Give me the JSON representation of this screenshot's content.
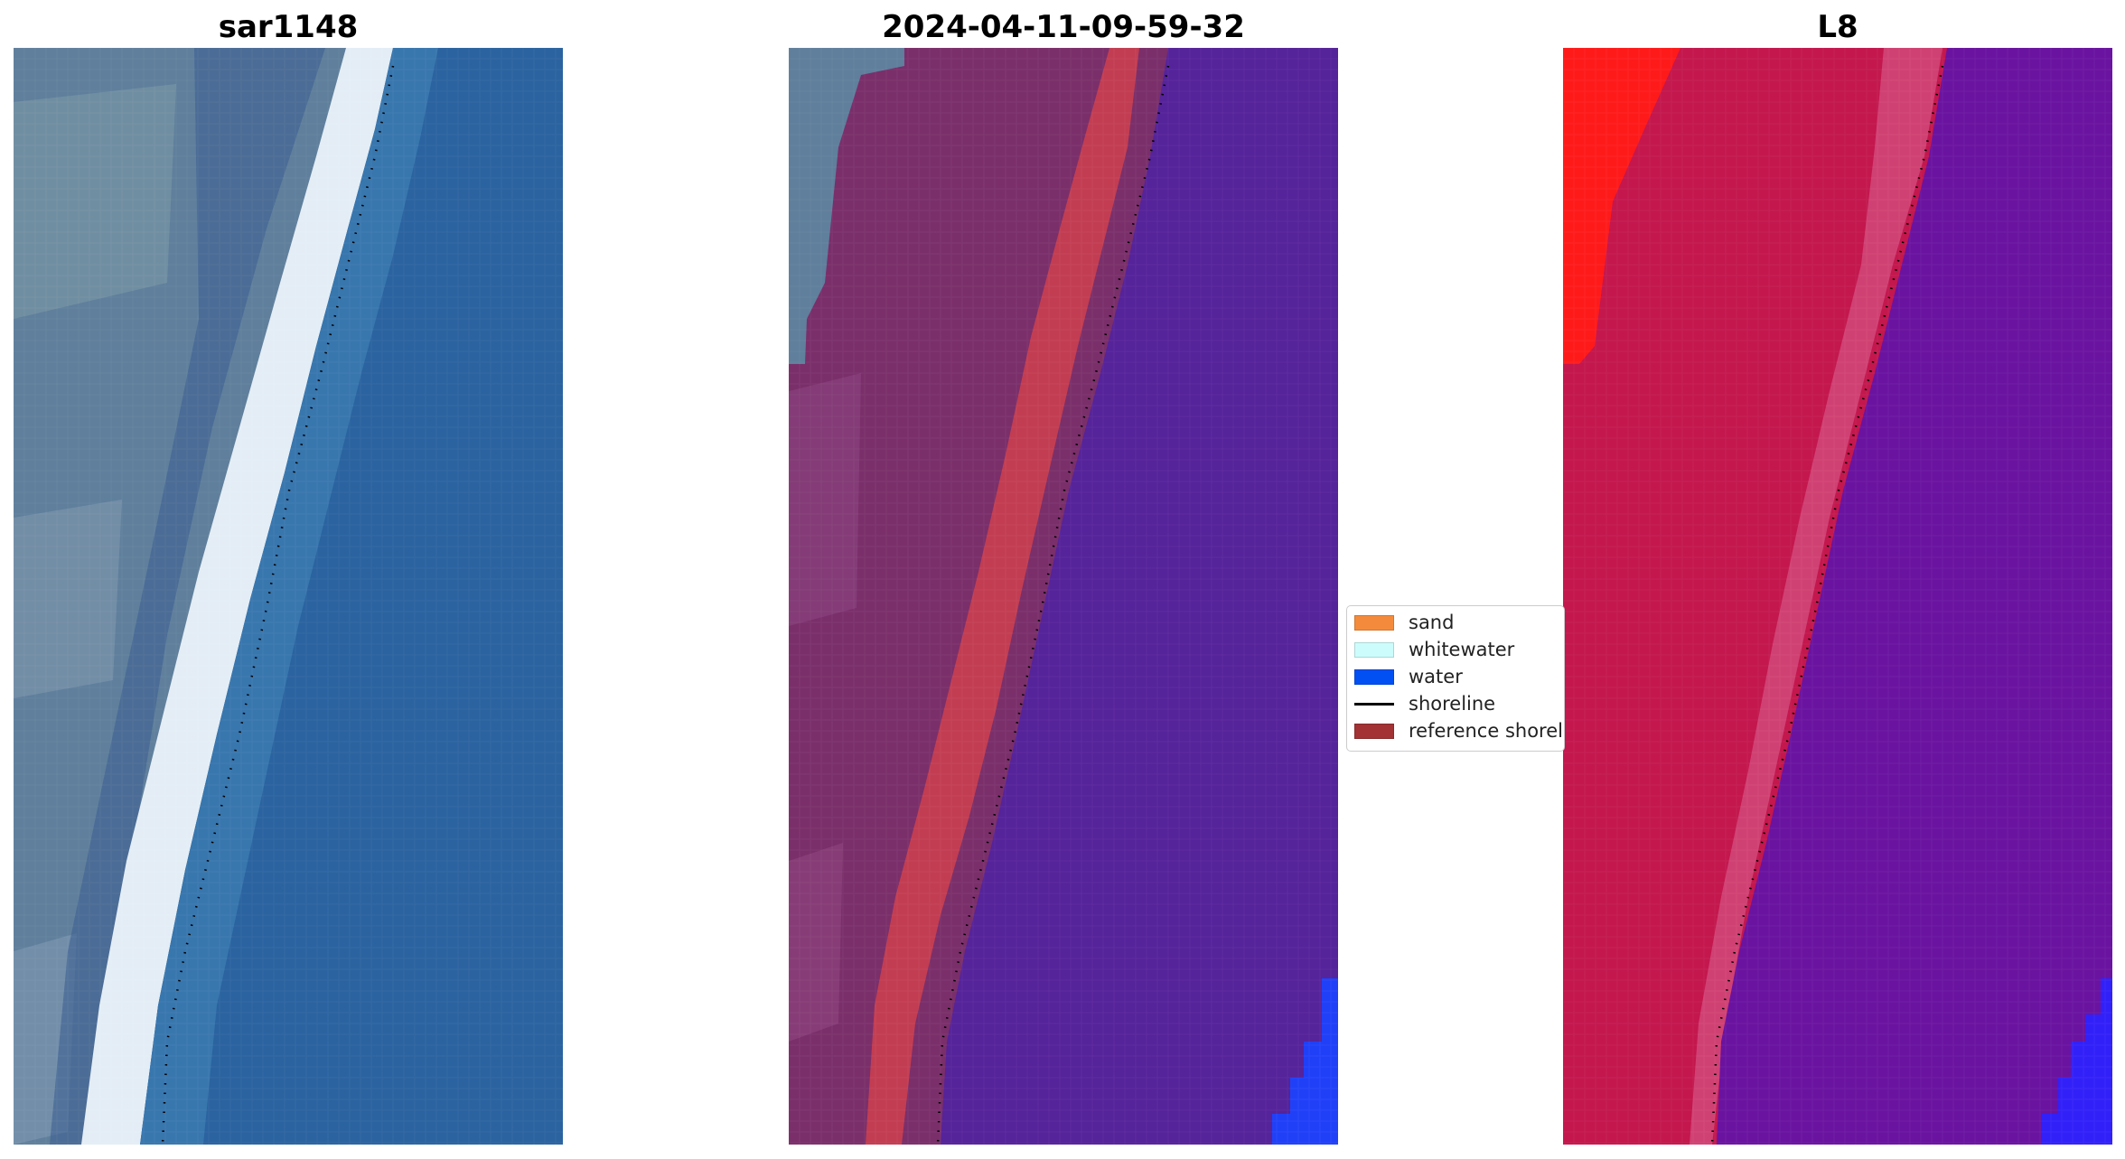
{
  "panels": [
    {
      "title": "sar1148"
    },
    {
      "title": "2024-04-11-09-59-32"
    },
    {
      "title": "L8"
    }
  ],
  "legend": {
    "items": [
      {
        "label": "sand",
        "type": "patch",
        "color": "#f48b3c"
      },
      {
        "label": "whitewater",
        "type": "patch",
        "color": "#ccfcfc"
      },
      {
        "label": "water",
        "type": "patch",
        "color": "#0050f4"
      },
      {
        "label": "shoreline",
        "type": "line",
        "color": "#000000"
      },
      {
        "label": "reference shoreline",
        "type": "patch",
        "color": "#a23234"
      }
    ]
  },
  "colors": {
    "sar_land": "#5f7f9c",
    "sar_surf": "#e6eef6",
    "sar_sea": "#2a63a0",
    "classified_land": "#7a2f6a",
    "classified_reference_band": "#c23d52",
    "classified_water": "#55239a",
    "classified_water_edge": "#2040f8",
    "l8_land": "#c3174e",
    "l8_land_bright": "#ff1a1a",
    "l8_water": "#6a13a0",
    "l8_water_edge": "#3220f8"
  }
}
